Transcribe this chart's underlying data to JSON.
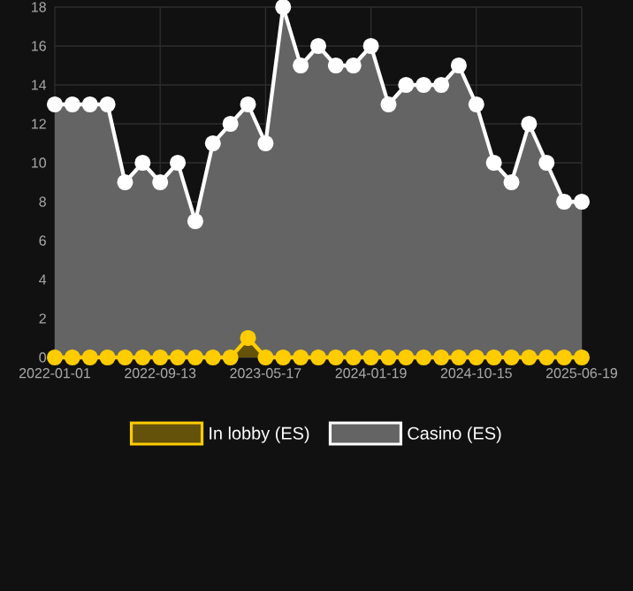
{
  "chart_data": {
    "type": "area",
    "categories": [
      "2022-01-01",
      null,
      null,
      null,
      null,
      null,
      "2022-09-13",
      null,
      null,
      null,
      null,
      null,
      "2023-05-17",
      null,
      null,
      null,
      null,
      null,
      "2024-01-19",
      null,
      null,
      null,
      null,
      null,
      "2024-10-15",
      null,
      null,
      null,
      null,
      null,
      "2025-06-19"
    ],
    "series": [
      {
        "name": "In lobby (ES)",
        "color": "#ffcc00",
        "values": [
          0,
          0,
          0,
          0,
          0,
          0,
          0,
          0,
          0,
          0,
          0,
          1,
          0,
          0,
          0,
          0,
          0,
          0,
          0,
          0,
          0,
          0,
          0,
          0,
          0,
          0,
          0,
          0,
          0,
          0,
          0
        ]
      },
      {
        "name": "Casino (ES)",
        "color": "#ffffff",
        "values": [
          13,
          13,
          13,
          13,
          9,
          10,
          9,
          10,
          7,
          11,
          12,
          13,
          11,
          18,
          15,
          16,
          15,
          15,
          16,
          13,
          14,
          14,
          14,
          15,
          13,
          10,
          9,
          12,
          10,
          8,
          8
        ]
      }
    ],
    "ylim": [
      0,
      18
    ],
    "yticks": [
      0,
      2,
      4,
      6,
      8,
      10,
      12,
      14,
      16,
      18
    ],
    "grid": true,
    "legend": "bottom",
    "marker": "circle",
    "line_style": "solid"
  }
}
